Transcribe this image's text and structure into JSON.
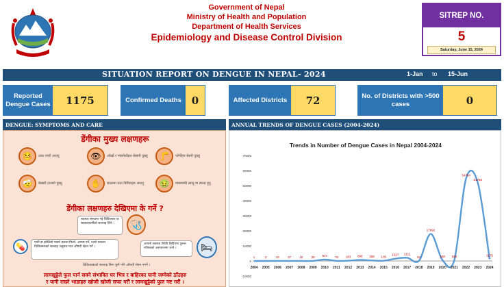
{
  "header": {
    "line1": "Government of Nepal",
    "line2": "Ministry of Health and Population",
    "line3": "Department of Health Services",
    "line4": "Epidemiology and Disease Control Division",
    "emblem_icon": "nepal-emblem-icon"
  },
  "sitrep": {
    "label": "SITREP NO.",
    "number": "5",
    "date": "Saturday, June 15, 2024"
  },
  "title_bar": {
    "title": "SITUATION REPORT ON DENGUE IN NEPAL- 2024",
    "date_from": "1-Jan",
    "to": "to",
    "date_to": "15-Jun"
  },
  "stats": [
    {
      "label": "Reported Dengue Cases",
      "value": "1175"
    },
    {
      "label": "Confirmed Deaths",
      "value": "0"
    },
    {
      "label": "Affected Districts",
      "value": "72"
    },
    {
      "label": "No. of Districts with >500 cases",
      "value": "0"
    }
  ],
  "panels": {
    "left_title": "DENGUE: SYMPTOMS AND CARE",
    "right_title": "ANNUAL TRENDS OF DENGUE CASES (2004-2024)"
  },
  "infographic": {
    "heading1": "डेंगीका मुख्य लक्षणहरू",
    "heading2": "डेंगीका लक्षणहरु देखिएमा के गर्ने ?",
    "symptoms": [
      {
        "text": "उच्च ज्वरो आउनु",
        "icon": "fever-icon"
      },
      {
        "text": "ऑखाँ र मांसपेशीहरु बेस्सरी दुख्नु",
        "icon": "eye-pain-icon"
      },
      {
        "text": "जोर्नीहरु बेसरी दुख्नु",
        "icon": "joint-pain-icon"
      },
      {
        "text": "बेस्सरी टाउको दुख्नु",
        "icon": "headache-icon"
      },
      {
        "text": "छालामा राता बिमिराहरु आउनु",
        "icon": "rash-icon"
      },
      {
        "text": "वाकवाकी लाग्नु वा बान्ता हुनु",
        "icon": "vomiting-icon"
      }
    ],
    "advice1": "स्वास्थ्य संस्थामा गई चिकित्सक वा स्वास्थ्यकर्मीको सल्लाह लिने ।",
    "advice2": "पानी वा झोलिलो पदार्थ प्रशस्त पिउने, आराम गर्ने, ज्वरो घटाउन चिकित्सकको सल्लाह अनुसार मात्र औषधी सेवन गर्ने ।",
    "advice3": "आफ्नो स्वास्थ्य स्थिति बिग्रिएमा तुरुन्त नजिकको अस्पतालमा जाने ।",
    "advice_note": "चिकित्सकको सल्लाह बिना कुनै पनि औषधी सेवन नगर्ने ।",
    "bottom1": "लामखुट्टेले फुल पार्न सक्ने संभावित घर भित्र र बाहिरका पानी जम्मेको ठाँउहरु",
    "bottom2": "र पानी राख्ने भाडाहरु खोजी खोजी सफा गरौं र लामखुट्टेको फुल नष्ट गरौं ।"
  },
  "chart_data": {
    "type": "line",
    "title": "Trends in Number of Dengue Cases in Nepal 2004-2024",
    "xlabel": "",
    "ylabel": "",
    "x": [
      "2004",
      "2005",
      "2006",
      "2007",
      "2008",
      "2009",
      "2010",
      "2011",
      "2012",
      "2013",
      "2014",
      "2015",
      "2016",
      "2017",
      "2018",
      "2019",
      "2020",
      "2021",
      "2022",
      "2023",
      "2024"
    ],
    "values": [
      1,
      0,
      32,
      27,
      10,
      30,
      917,
      79,
      183,
      686,
      356,
      135,
      1527,
      2111,
      81,
      17992,
      530,
      540,
      54784,
      51780,
      1175
    ],
    "data_labels": [
      "1",
      "0",
      "32",
      "27",
      "10",
      "30",
      "917",
      "79",
      "183",
      "686",
      "356",
      "135",
      "1527",
      "2111",
      "81",
      "17992",
      "530",
      "540",
      "54784",
      "51780",
      "1175"
    ],
    "ylim": [
      -10000,
      70000
    ],
    "yticks": [
      -10000,
      0,
      10000,
      20000,
      30000,
      40000,
      50000,
      60000,
      70000
    ],
    "ytick_labels": [
      "-10000",
      "0",
      "10000",
      "20000",
      "30000",
      "40000",
      "50000",
      "60000",
      "70000"
    ],
    "grid": false,
    "legend": "none",
    "line_color": "#5b9bd5",
    "label_color": "#c00000"
  }
}
